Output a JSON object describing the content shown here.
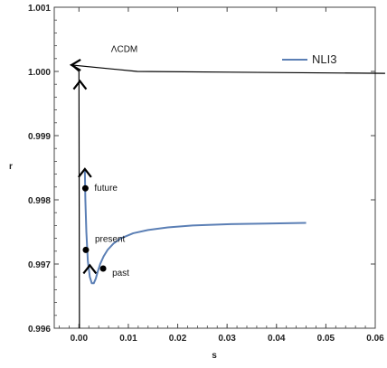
{
  "chart_data": {
    "type": "line",
    "xlabel": "s",
    "ylabel": "r",
    "xlim": [
      -0.005,
      0.06
    ],
    "ylim": [
      0.996,
      1.001
    ],
    "x_ticks": [
      "0.00",
      "0.01",
      "0.02",
      "0.03",
      "0.04",
      "0.05",
      "0.06"
    ],
    "x_tick_values": [
      0,
      0.01,
      0.02,
      0.03,
      0.04,
      0.05,
      0.06
    ],
    "y_ticks": [
      "0.996",
      "0.997",
      "0.998",
      "0.999",
      "1.000",
      "1.001"
    ],
    "y_tick_values": [
      0.996,
      0.997,
      0.998,
      0.999,
      1.0,
      1.001
    ],
    "legend": {
      "position": "top-right"
    },
    "series": [
      {
        "name": "NLI3",
        "color": "#5b7fb5",
        "x": [
          0.0012,
          0.0013,
          0.0015,
          0.0018,
          0.0022,
          0.0026,
          0.003,
          0.0034,
          0.0038,
          0.0043,
          0.005,
          0.0058,
          0.007,
          0.0085,
          0.011,
          0.014,
          0.018,
          0.023,
          0.03,
          0.038,
          0.046
        ],
        "y": [
          0.99845,
          0.998,
          0.9975,
          0.99705,
          0.9968,
          0.9967,
          0.9967,
          0.99677,
          0.99688,
          0.997,
          0.99712,
          0.99722,
          0.99732,
          0.9974,
          0.99748,
          0.99753,
          0.99757,
          0.9976,
          0.99762,
          0.99763,
          0.99764
        ]
      }
    ],
    "trajectory": {
      "name": "ΛCDM-path",
      "color": "#000000",
      "x": [
        0.0001,
        0.0,
        -0.0015,
        0.0118,
        0.062
      ],
      "y": [
        0.996,
        1.0,
        1.0001,
        1.0,
        0.99997
      ]
    },
    "points": [
      {
        "label": "future",
        "x": 0.0013,
        "y": 0.99818
      },
      {
        "label": "present",
        "x": 0.0014,
        "y": 0.99722
      },
      {
        "label": "past",
        "x": 0.0049,
        "y": 0.99693
      }
    ],
    "arrows": [
      {
        "x": 0.0002,
        "y": 0.99985,
        "dir": "up"
      },
      {
        "x": 0.0012,
        "y": 0.99848,
        "dir": "up"
      },
      {
        "x": 0.0022,
        "y": 0.99698,
        "dir": "up"
      },
      {
        "x": -0.0015,
        "y": 1.0001,
        "dir": "left"
      }
    ],
    "annotations": [
      {
        "text": "ΛCDM",
        "x": 0.0065,
        "y": 1.0003
      }
    ]
  }
}
